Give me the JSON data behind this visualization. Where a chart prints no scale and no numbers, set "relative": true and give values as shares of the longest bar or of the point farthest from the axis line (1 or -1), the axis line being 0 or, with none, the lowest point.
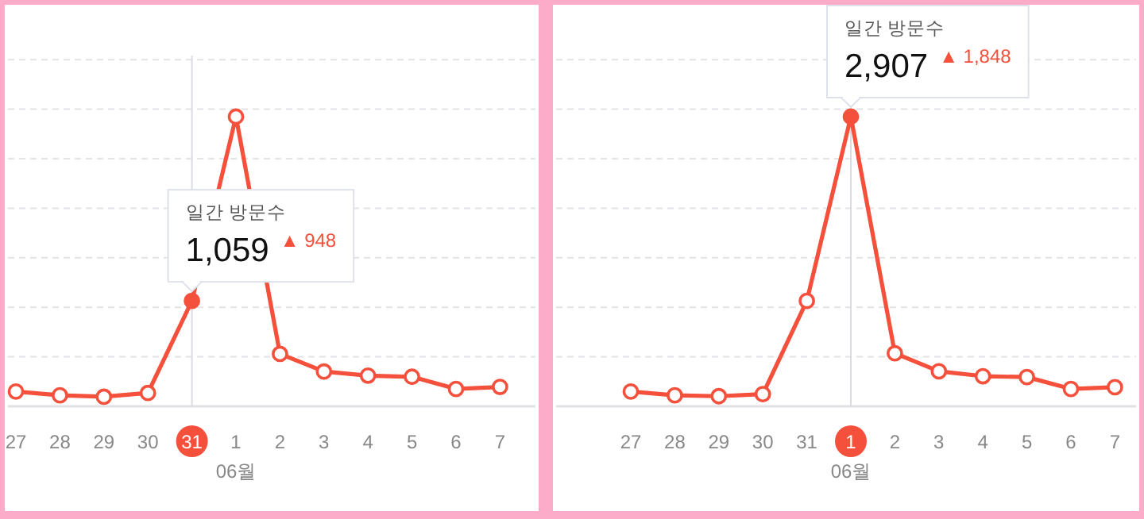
{
  "chart_data": [
    {
      "type": "line",
      "relative": true,
      "xlabel": "06월",
      "categories": [
        "27",
        "28",
        "29",
        "30",
        "31",
        "1",
        "2",
        "3",
        "4",
        "5",
        "6",
        "7"
      ],
      "grid": "y",
      "marker": "circle",
      "line_style": "solid",
      "tick_labels": "x",
      "series": [
        {
          "color": "#f4503c",
          "values": [
            0.051,
            0.038,
            0.033,
            0.046,
            0.364,
            1,
            0.181,
            0.12,
            0.106,
            0.102,
            0.06,
            0.067
          ]
        }
      ],
      "ref_lines": [
        {
          "axis": "x",
          "value": "31",
          "color": "#dcdce0"
        }
      ],
      "annotations": [
        "일간 방문수",
        {
          "text": "1,059",
          "x": "31",
          "y": 0.364
        },
        "▲ 948"
      ]
    },
    {
      "type": "line",
      "relative": true,
      "xlabel": "06월",
      "categories": [
        "27",
        "28",
        "29",
        "30",
        "31",
        "1",
        "2",
        "3",
        "4",
        "5",
        "6",
        "7"
      ],
      "grid": "y",
      "marker": "circle",
      "line_style": "solid",
      "tick_labels": "x",
      "series": [
        {
          "color": "#f4503c",
          "values": [
            0.051,
            0.038,
            0.035,
            0.042,
            0.364,
            1,
            0.183,
            0.121,
            0.104,
            0.101,
            0.06,
            0.066
          ]
        }
      ],
      "ref_lines": [
        {
          "axis": "x",
          "value": "1",
          "color": "#dcdce0"
        }
      ],
      "annotations": [
        "일간 방문수",
        {
          "text": "2,907",
          "x": "1",
          "y": 1
        },
        "▲ 1,848"
      ]
    }
  ]
}
